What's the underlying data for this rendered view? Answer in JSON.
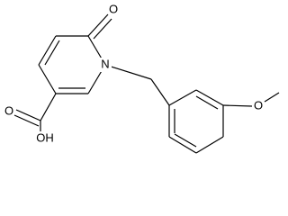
{
  "atoms": [
    {
      "label": "O"
    },
    {
      "label": "N"
    },
    {
      "label": "O"
    },
    {
      "label": "OH"
    },
    {
      "label": "O"
    }
  ]
}
